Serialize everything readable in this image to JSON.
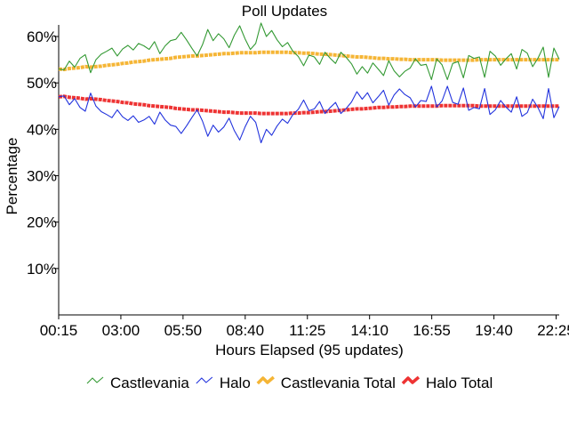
{
  "chart_data": {
    "type": "line",
    "title": "Poll Updates",
    "xlabel": "Hours Elapsed (95 updates)",
    "ylabel": "Percentage",
    "x_tick_labels": [
      "00:15",
      "03:00",
      "05:50",
      "08:40",
      "11:25",
      "14:10",
      "16:55",
      "19:40",
      "22:25"
    ],
    "y_ticks": [
      10,
      20,
      30,
      40,
      50,
      60
    ],
    "y_tick_suffix": "%",
    "ylim": [
      0,
      62.5
    ],
    "x_count": 95,
    "grid": false,
    "legend_position": "bottom",
    "series": [
      {
        "name": "Castlevania",
        "color": "#339933",
        "style": "thin",
        "values": [
          53.0,
          52.8,
          54.7,
          53.4,
          55.3,
          56.1,
          52.2,
          55.0,
          56.2,
          56.8,
          57.5,
          55.8,
          57.3,
          58.1,
          57.1,
          58.5,
          58.0,
          57.2,
          58.9,
          56.3,
          58.0,
          59.1,
          59.4,
          60.9,
          59.3,
          57.5,
          55.8,
          58.2,
          61.5,
          59.1,
          60.6,
          59.5,
          57.6,
          60.3,
          62.3,
          59.5,
          57.2,
          58.5,
          62.9,
          60.0,
          61.3,
          59.3,
          57.8,
          58.7,
          56.8,
          55.7,
          53.7,
          56.0,
          55.6,
          54.0,
          56.6,
          55.3,
          54.2,
          56.6,
          55.5,
          54.1,
          51.9,
          53.5,
          52.1,
          54.3,
          53.0,
          51.6,
          54.8,
          52.6,
          51.3,
          52.5,
          53.2,
          55.2,
          53.8,
          54.0,
          50.7,
          55.2,
          53.9,
          50.7,
          54.2,
          54.6,
          51.1,
          55.9,
          55.3,
          55.6,
          51.2,
          56.8,
          55.8,
          53.8,
          55.2,
          56.3,
          53.0,
          57.2,
          56.4,
          53.5,
          55.3,
          57.7,
          51.2,
          57.5,
          55.1
        ]
      },
      {
        "name": "Halo",
        "color": "#2233dd",
        "style": "thin",
        "values": [
          47.0,
          47.2,
          45.3,
          46.6,
          44.7,
          43.9,
          47.8,
          45.0,
          43.8,
          43.2,
          42.5,
          44.2,
          42.7,
          41.9,
          42.9,
          41.5,
          42.0,
          42.8,
          41.1,
          43.7,
          42.0,
          40.9,
          40.6,
          39.1,
          40.7,
          42.5,
          44.2,
          41.8,
          38.5,
          40.9,
          39.4,
          40.5,
          42.4,
          39.7,
          37.7,
          40.5,
          42.8,
          41.5,
          37.1,
          40.0,
          38.7,
          40.7,
          42.2,
          41.3,
          43.2,
          44.3,
          46.3,
          44.0,
          44.4,
          46.0,
          43.4,
          44.7,
          45.8,
          43.4,
          44.5,
          45.9,
          48.1,
          46.5,
          47.9,
          45.7,
          47.0,
          48.4,
          45.2,
          47.4,
          48.7,
          47.5,
          46.8,
          44.8,
          46.2,
          46.0,
          49.3,
          44.8,
          46.1,
          49.3,
          45.8,
          45.4,
          48.9,
          44.1,
          44.7,
          44.4,
          48.8,
          43.2,
          44.2,
          46.2,
          44.8,
          43.7,
          47.0,
          42.8,
          43.6,
          46.5,
          44.7,
          42.3,
          48.8,
          42.5,
          44.9
        ]
      },
      {
        "name": "Castlevania Total",
        "color": "#f5b535",
        "style": "thick",
        "values": [
          53.0,
          52.9,
          53.1,
          53.2,
          53.3,
          53.5,
          53.4,
          53.5,
          53.6,
          53.8,
          53.9,
          54.0,
          54.2,
          54.3,
          54.5,
          54.6,
          54.7,
          54.9,
          55.0,
          55.1,
          55.2,
          55.3,
          55.5,
          55.6,
          55.7,
          55.8,
          55.8,
          55.9,
          56.0,
          56.1,
          56.2,
          56.3,
          56.3,
          56.4,
          56.5,
          56.5,
          56.5,
          56.5,
          56.6,
          56.6,
          56.6,
          56.6,
          56.6,
          56.6,
          56.5,
          56.5,
          56.4,
          56.4,
          56.3,
          56.2,
          56.2,
          56.1,
          56.0,
          55.9,
          55.8,
          55.7,
          55.6,
          55.6,
          55.5,
          55.4,
          55.3,
          55.3,
          55.2,
          55.2,
          55.1,
          55.1,
          55.0,
          55.0,
          55.0,
          55.0,
          55.0,
          55.0,
          54.9,
          54.9,
          54.9,
          54.9,
          54.9,
          54.9,
          54.9,
          55.0,
          55.0,
          55.0,
          55.0,
          55.0,
          55.0,
          55.0,
          55.0,
          55.0,
          55.0,
          55.0,
          55.0,
          55.0,
          55.0,
          55.0,
          55.0
        ]
      },
      {
        "name": "Halo Total",
        "color": "#ee3333",
        "style": "thick",
        "values": [
          47.0,
          47.1,
          46.9,
          46.8,
          46.7,
          46.5,
          46.6,
          46.5,
          46.4,
          46.2,
          46.1,
          46.0,
          45.8,
          45.7,
          45.5,
          45.4,
          45.3,
          45.1,
          45.0,
          44.9,
          44.8,
          44.7,
          44.5,
          44.4,
          44.3,
          44.2,
          44.2,
          44.1,
          44.0,
          43.9,
          43.8,
          43.7,
          43.7,
          43.6,
          43.5,
          43.5,
          43.5,
          43.5,
          43.4,
          43.4,
          43.4,
          43.4,
          43.4,
          43.4,
          43.5,
          43.5,
          43.6,
          43.6,
          43.7,
          43.8,
          43.8,
          43.9,
          44.0,
          44.1,
          44.2,
          44.3,
          44.4,
          44.4,
          44.5,
          44.6,
          44.7,
          44.7,
          44.8,
          44.8,
          44.9,
          44.9,
          45.0,
          45.0,
          45.0,
          45.0,
          45.0,
          45.0,
          45.1,
          45.1,
          45.1,
          45.1,
          45.1,
          45.1,
          45.1,
          45.0,
          45.0,
          45.0,
          45.0,
          45.0,
          45.0,
          45.0,
          45.0,
          45.0,
          45.0,
          45.0,
          45.0,
          45.0,
          45.0,
          45.0,
          45.0
        ]
      }
    ]
  }
}
